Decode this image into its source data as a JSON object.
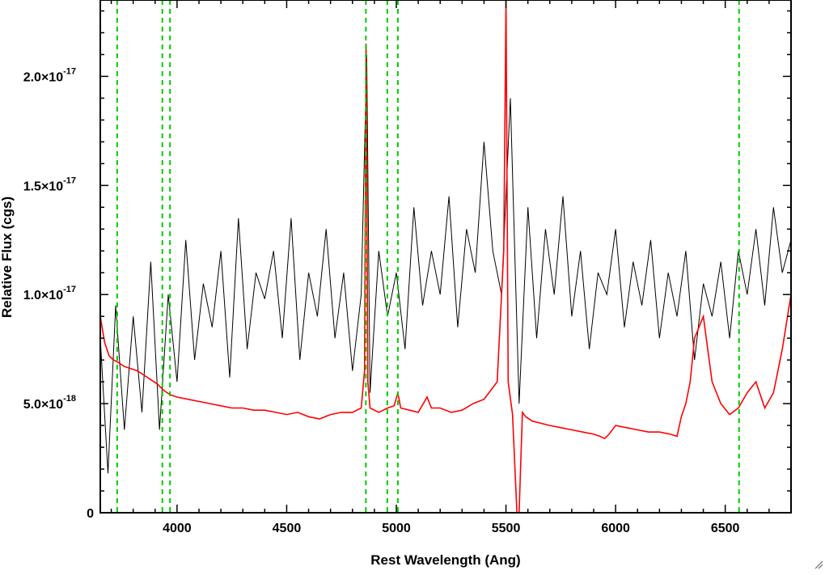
{
  "chart_data": {
    "type": "line",
    "title": "",
    "xlabel": "Rest Wavelength (Ang)",
    "ylabel": "Relative Flux (cgs)",
    "xlim": [
      3650,
      6800
    ],
    "ylim": [
      0,
      2.35e-17
    ],
    "x_ticks": [
      {
        "value": 4000,
        "label": "4000"
      },
      {
        "value": 4500,
        "label": "4500"
      },
      {
        "value": 5000,
        "label": "5000"
      },
      {
        "value": 5500,
        "label": "5500"
      },
      {
        "value": 6000,
        "label": "6000"
      },
      {
        "value": 6500,
        "label": "6500"
      }
    ],
    "y_ticks": [
      {
        "value": 0,
        "mantissa": "0",
        "exponent": ""
      },
      {
        "value": 5e-18,
        "mantissa": "5.0×10",
        "exponent": "-18"
      },
      {
        "value": 1e-17,
        "mantissa": "1.0×10",
        "exponent": "-17"
      },
      {
        "value": 1.5e-17,
        "mantissa": "1.5×10",
        "exponent": "-17"
      },
      {
        "value": 2e-17,
        "mantissa": "2.0×10",
        "exponent": "-17"
      }
    ],
    "grid": false,
    "legend": "none",
    "series": [
      {
        "color": "#000000",
        "x": [
          3650,
          3685,
          3720,
          3760,
          3800,
          3840,
          3880,
          3920,
          3960,
          4000,
          4040,
          4080,
          4120,
          4160,
          4200,
          4240,
          4280,
          4320,
          4360,
          4400,
          4440,
          4480,
          4520,
          4560,
          4600,
          4640,
          4680,
          4720,
          4760,
          4800,
          4840,
          4865,
          4880,
          4920,
          4960,
          5000,
          5040,
          5080,
          5120,
          5160,
          5200,
          5240,
          5280,
          5320,
          5360,
          5400,
          5440,
          5480,
          5520,
          5560,
          5600,
          5640,
          5680,
          5720,
          5760,
          5800,
          5840,
          5880,
          5920,
          5960,
          6000,
          6040,
          6080,
          6120,
          6160,
          6200,
          6240,
          6280,
          6320,
          6360,
          6400,
          6440,
          6480,
          6520,
          6560,
          6600,
          6640,
          6680,
          6720,
          6760,
          6800
        ],
        "y": [
          8e-18,
          1.8e-18,
          9.5e-18,
          3.8e-18,
          9e-18,
          4.6e-18,
          1.15e-17,
          3.8e-18,
          1e-17,
          6e-18,
          1.25e-17,
          7e-18,
          1.05e-17,
          8.5e-18,
          1.2e-17,
          6.2e-18,
          1.35e-17,
          7.5e-18,
          1.1e-17,
          9.8e-18,
          1.2e-17,
          8e-18,
          1.35e-17,
          7e-18,
          1.1e-17,
          9e-18,
          1.3e-17,
          8e-18,
          1.1e-17,
          6.5e-18,
          1e-17,
          2.1e-17,
          5.5e-18,
          1.2e-17,
          9e-18,
          1.1e-17,
          7.5e-18,
          1.4e-17,
          9.5e-18,
          1.2e-17,
          1e-17,
          1.45e-17,
          8.5e-18,
          1.3e-17,
          1.1e-17,
          1.7e-17,
          1.2e-17,
          1e-17,
          1.9e-17,
          5e-18,
          1.4e-17,
          8e-18,
          1.3e-17,
          1e-17,
          1.45e-17,
          9e-18,
          1.2e-17,
          7.5e-18,
          1.1e-17,
          1e-17,
          1.3e-17,
          8.5e-18,
          1.15e-17,
          9.5e-18,
          1.25e-17,
          8e-18,
          1.1e-17,
          9e-18,
          1.2e-17,
          7e-18,
          1.05e-17,
          9e-18,
          1.15e-17,
          8e-18,
          1.2e-17,
          1e-17,
          1.3e-17,
          9.5e-18,
          1.4e-17,
          1.1e-17,
          1.25e-17
        ]
      },
      {
        "color": "#ff0000",
        "x": [
          3650,
          3670,
          3690,
          3710,
          3730,
          3760,
          3790,
          3820,
          3850,
          3880,
          3910,
          3940,
          3970,
          4000,
          4050,
          4100,
          4150,
          4200,
          4250,
          4300,
          4350,
          4400,
          4450,
          4500,
          4550,
          4600,
          4650,
          4700,
          4750,
          4800,
          4840,
          4855,
          4862,
          4870,
          4880,
          4920,
          4960,
          4990,
          5007,
          5020,
          5060,
          5100,
          5140,
          5160,
          5200,
          5250,
          5300,
          5350,
          5400,
          5430,
          5460,
          5490,
          5500,
          5510,
          5530,
          5550,
          5560,
          5575,
          5590,
          5620,
          5660,
          5700,
          5750,
          5800,
          5850,
          5900,
          5930,
          5950,
          5970,
          6000,
          6050,
          6100,
          6150,
          6200,
          6250,
          6280,
          6300,
          6320,
          6340,
          6360,
          6400,
          6440,
          6480,
          6520,
          6560,
          6600,
          6640,
          6680,
          6720,
          6760,
          6800
        ],
        "y": [
          9e-18,
          7.8e-18,
          7.2e-18,
          7e-18,
          6.9e-18,
          6.7e-18,
          6.6e-18,
          6.5e-18,
          6.3e-18,
          6.1e-18,
          5.9e-18,
          5.6e-18,
          5.4e-18,
          5.3e-18,
          5.2e-18,
          5.1e-18,
          5e-18,
          4.9e-18,
          4.8e-18,
          4.8e-18,
          4.7e-18,
          4.7e-18,
          4.6e-18,
          4.5e-18,
          4.6e-18,
          4.4e-18,
          4.3e-18,
          4.5e-18,
          4.6e-18,
          4.6e-18,
          4.8e-18,
          6.5e-18,
          2.15e-17,
          6e-18,
          4.8e-18,
          4.6e-18,
          4.8e-18,
          4.9e-18,
          5.5e-18,
          4.8e-18,
          4.7e-18,
          4.6e-18,
          5.3e-18,
          4.8e-18,
          4.8e-18,
          4.6e-18,
          4.7e-18,
          5e-18,
          5.2e-18,
          5.6e-18,
          6e-18,
          1.2e-17,
          2.35e-17,
          6e-18,
          4.5e-18,
          0,
          0,
          4.6e-18,
          4.4e-18,
          4.2e-18,
          4.1e-18,
          4e-18,
          3.9e-18,
          3.8e-18,
          3.7e-18,
          3.6e-18,
          3.5e-18,
          3.4e-18,
          3.6e-18,
          4e-18,
          3.9e-18,
          3.8e-18,
          3.7e-18,
          3.7e-18,
          3.6e-18,
          3.5e-18,
          4.4e-18,
          5e-18,
          6e-18,
          8e-18,
          9e-18,
          6e-18,
          5e-18,
          4.5e-18,
          4.8e-18,
          5.5e-18,
          6e-18,
          4.8e-18,
          5.5e-18,
          7.5e-18,
          1e-17
        ]
      }
    ],
    "vlines": [
      {
        "x": 3727,
        "color": "#00cc00",
        "style": "dashed"
      },
      {
        "x": 3933,
        "color": "#00cc00",
        "style": "dashed"
      },
      {
        "x": 3968,
        "color": "#00cc00",
        "style": "dashed"
      },
      {
        "x": 4861,
        "color": "#00cc00",
        "style": "dashed"
      },
      {
        "x": 4959,
        "color": "#00cc00",
        "style": "dashed"
      },
      {
        "x": 5007,
        "color": "#00cc00",
        "style": "dashed"
      },
      {
        "x": 6563,
        "color": "#00cc00",
        "style": "dashed"
      }
    ]
  }
}
